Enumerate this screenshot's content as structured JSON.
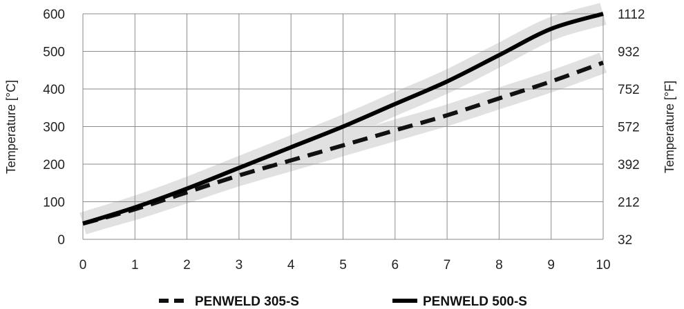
{
  "chart_data": {
    "type": "line",
    "xlabel": "",
    "ylabel_left": "Temperature [°C]",
    "ylabel_right": "Temperature [°F]",
    "xlim": [
      0,
      10
    ],
    "ylim": [
      0,
      600
    ],
    "x_ticks": [
      "0",
      "1",
      "2",
      "3",
      "4",
      "5",
      "6",
      "7",
      "8",
      "9",
      "10"
    ],
    "y_ticks_left": [
      "0",
      "100",
      "200",
      "300",
      "400",
      "500",
      "600"
    ],
    "y_ticks_right": [
      "32",
      "212",
      "392",
      "572",
      "752",
      "932",
      "1112"
    ],
    "grid": true,
    "legend_position": "bottom",
    "series": [
      {
        "name": "PENWELD 305-S",
        "style": "dashed",
        "color": "#111111",
        "band_color": "#e1e1e1",
        "x": [
          0,
          1,
          2,
          3,
          4,
          5,
          6,
          7,
          8,
          9,
          10
        ],
        "y": [
          42,
          80,
          125,
          170,
          210,
          250,
          290,
          330,
          375,
          420,
          470
        ],
        "band_halfwidth": 28
      },
      {
        "name": "PENWELD 500-S",
        "style": "solid",
        "color": "#000000",
        "band_color": "#e1e1e1",
        "x": [
          0,
          1,
          2,
          3,
          4,
          5,
          6,
          7,
          8,
          9,
          10
        ],
        "y": [
          42,
          85,
          135,
          190,
          245,
          300,
          360,
          420,
          490,
          560,
          600
        ],
        "band_halfwidth": 30
      }
    ]
  }
}
